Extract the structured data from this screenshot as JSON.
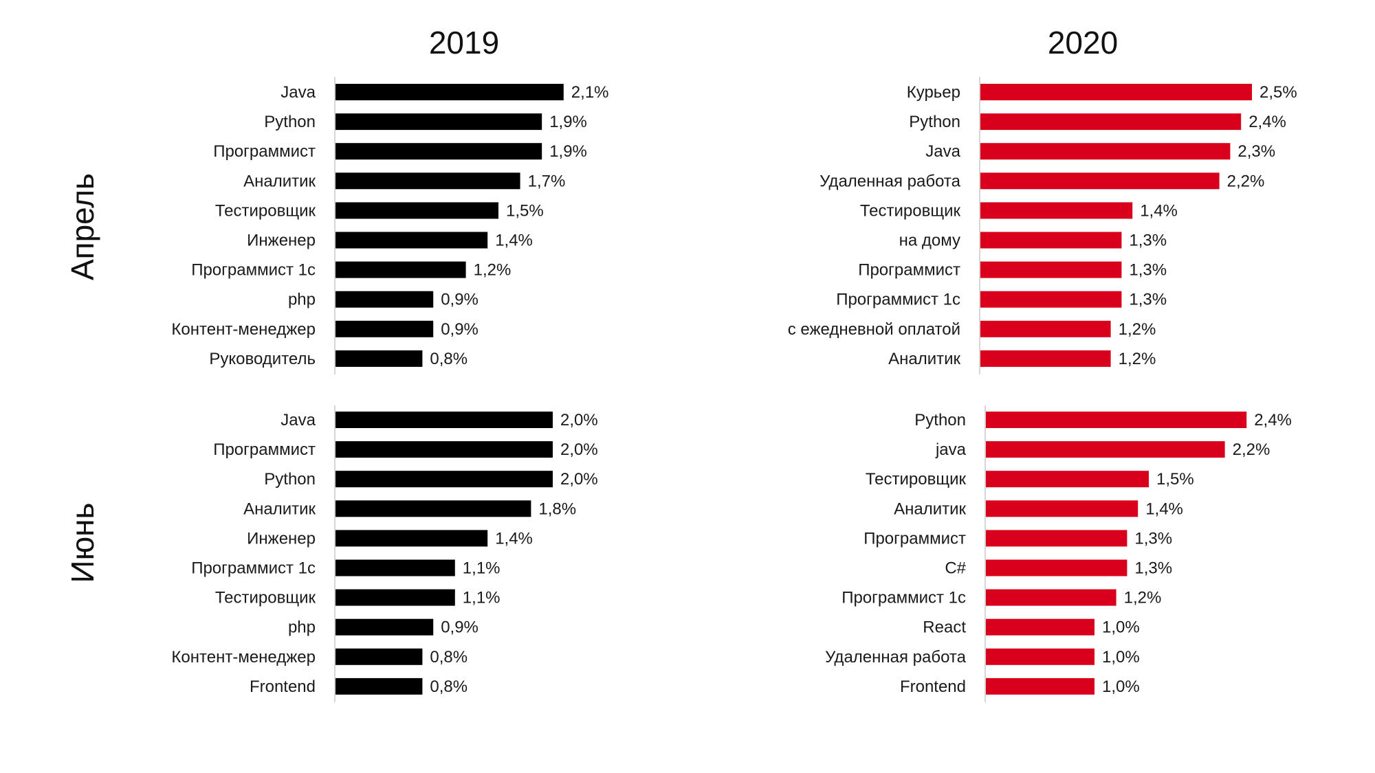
{
  "headers": {
    "col_left": "2019",
    "col_right": "2020",
    "row_top": "Апрель",
    "row_bottom": "Июнь"
  },
  "colors": {
    "left": "#000000",
    "right": "#d9001b"
  },
  "chart_data": [
    {
      "type": "bar",
      "orientation": "horizontal",
      "year": "2019",
      "month": "Апрель",
      "categories": [
        "Java",
        "Python",
        "Программист",
        "Аналитик",
        "Тестировщик",
        "Инженер",
        "Программист 1с",
        "php",
        "Контент-менеджер",
        "Руководитель"
      ],
      "values": [
        2.1,
        1.9,
        1.9,
        1.7,
        1.5,
        1.4,
        1.2,
        0.9,
        0.9,
        0.8
      ],
      "labels": [
        "2,1%",
        "1,9%",
        "1,9%",
        "1,7%",
        "1,5%",
        "1,4%",
        "1,2%",
        "0,9%",
        "0,9%",
        "0,8%"
      ],
      "color": "#000000",
      "xlim": [
        0,
        2.5
      ]
    },
    {
      "type": "bar",
      "orientation": "horizontal",
      "year": "2020",
      "month": "Апрель",
      "categories": [
        "Курьер",
        "Python",
        "Java",
        "Удаленная работа",
        "Тестировщик",
        "на дому",
        "Программист",
        "Программист 1с",
        "с ежедневной оплатой",
        "Аналитик"
      ],
      "values": [
        2.5,
        2.4,
        2.3,
        2.2,
        1.4,
        1.3,
        1.3,
        1.3,
        1.2,
        1.2
      ],
      "labels": [
        "2,5%",
        "2,4%",
        "2,3%",
        "2,2%",
        "1,4%",
        "1,3%",
        "1,3%",
        "1,3%",
        "1,2%",
        "1,2%"
      ],
      "color": "#d9001b",
      "xlim": [
        0,
        2.5
      ]
    },
    {
      "type": "bar",
      "orientation": "horizontal",
      "year": "2019",
      "month": "Июнь",
      "categories": [
        "Java",
        "Программист",
        "Python",
        "Аналитик",
        "Инженер",
        "Программист 1с",
        "Тестировщик",
        "php",
        "Контент-менеджер",
        "Frontend"
      ],
      "values": [
        2.0,
        2.0,
        2.0,
        1.8,
        1.4,
        1.1,
        1.1,
        0.9,
        0.8,
        0.8
      ],
      "labels": [
        "2,0%",
        "2,0%",
        "2,0%",
        "1,8%",
        "1,4%",
        "1,1%",
        "1,1%",
        "0,9%",
        "0,8%",
        "0,8%"
      ],
      "color": "#000000",
      "xlim": [
        0,
        2.5
      ]
    },
    {
      "type": "bar",
      "orientation": "horizontal",
      "year": "2020",
      "month": "Июнь",
      "categories": [
        "Python",
        "java",
        "Тестировщик",
        "Аналитик",
        "Программист",
        "C#",
        "Программист 1с",
        "React",
        "Удаленная работа",
        "Frontend"
      ],
      "values": [
        2.4,
        2.2,
        1.5,
        1.4,
        1.3,
        1.3,
        1.2,
        1.0,
        1.0,
        1.0
      ],
      "labels": [
        "2,4%",
        "2,2%",
        "1,5%",
        "1,4%",
        "1,3%",
        "1,3%",
        "1,2%",
        "1,0%",
        "1,0%",
        "1,0%"
      ],
      "color": "#d9001b",
      "xlim": [
        0,
        2.5
      ]
    }
  ]
}
